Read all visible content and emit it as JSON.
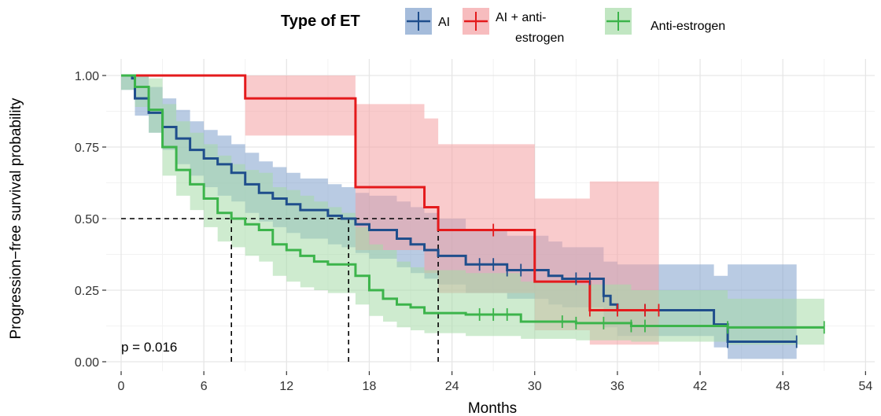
{
  "chart_data": {
    "type": "line",
    "subtype": "kaplan-meier",
    "xlabel": "Months",
    "ylabel": "Progression−free survival probability",
    "xlim": [
      0,
      54
    ],
    "ylim": [
      0,
      1
    ],
    "x_ticks": [
      "0",
      "6",
      "12",
      "18",
      "24",
      "30",
      "36",
      "42",
      "48",
      "54"
    ],
    "y_ticks": [
      "0.00",
      "0.25",
      "0.50",
      "0.75",
      "1.00"
    ],
    "grid": true,
    "legend": {
      "title": "Type of ET",
      "position": "top"
    },
    "annotation": "p = 0.016",
    "median_lines": [
      {
        "x": 8.0,
        "y": 0.5
      },
      {
        "x": 16.5,
        "y": 0.5
      },
      {
        "x": 23.0,
        "y": 0.5
      }
    ],
    "series": [
      {
        "name": "AI",
        "color": "#1f4e8c",
        "fill": "#7fa0cc",
        "steps": [
          [
            0,
            1.0
          ],
          [
            0.8,
            0.99
          ],
          [
            1.0,
            0.92
          ],
          [
            2.0,
            0.87
          ],
          [
            3.0,
            0.82
          ],
          [
            4.0,
            0.78
          ],
          [
            5.0,
            0.74
          ],
          [
            6.0,
            0.71
          ],
          [
            7.0,
            0.69
          ],
          [
            8.0,
            0.66
          ],
          [
            9.0,
            0.62
          ],
          [
            10.0,
            0.59
          ],
          [
            11.0,
            0.57
          ],
          [
            12.0,
            0.55
          ],
          [
            13.0,
            0.53
          ],
          [
            15.0,
            0.51
          ],
          [
            16.0,
            0.5
          ],
          [
            17.0,
            0.48
          ],
          [
            18.0,
            0.46
          ],
          [
            20.0,
            0.43
          ],
          [
            21.0,
            0.41
          ],
          [
            22.0,
            0.39
          ],
          [
            23.0,
            0.37
          ],
          [
            25.0,
            0.34
          ],
          [
            28.0,
            0.32
          ],
          [
            31.0,
            0.3
          ],
          [
            32.0,
            0.29
          ],
          [
            35.0,
            0.23
          ],
          [
            35.5,
            0.2
          ],
          [
            36.0,
            0.18
          ],
          [
            43.0,
            0.13
          ],
          [
            44.0,
            0.07
          ],
          [
            49.0,
            0.07
          ]
        ],
        "ci_upper": [
          [
            0,
            1.0
          ],
          [
            1.0,
            1.0
          ],
          [
            2.0,
            0.96
          ],
          [
            3.0,
            0.92
          ],
          [
            4.0,
            0.88
          ],
          [
            5.0,
            0.84
          ],
          [
            6.0,
            0.81
          ],
          [
            7.0,
            0.79
          ],
          [
            8.0,
            0.76
          ],
          [
            9.0,
            0.73
          ],
          [
            10.0,
            0.7
          ],
          [
            11.0,
            0.68
          ],
          [
            12.0,
            0.66
          ],
          [
            13.0,
            0.64
          ],
          [
            15.0,
            0.62
          ],
          [
            16.0,
            0.61
          ],
          [
            17.0,
            0.59
          ],
          [
            18.0,
            0.58
          ],
          [
            20.0,
            0.56
          ],
          [
            21.0,
            0.54
          ],
          [
            22.0,
            0.52
          ],
          [
            23.0,
            0.5
          ],
          [
            25.0,
            0.46
          ],
          [
            28.0,
            0.44
          ],
          [
            31.0,
            0.42
          ],
          [
            32.0,
            0.4
          ],
          [
            35.0,
            0.35
          ],
          [
            36.0,
            0.34
          ],
          [
            43.0,
            0.3
          ],
          [
            44.0,
            0.34
          ],
          [
            49.0,
            0.34
          ]
        ],
        "ci_lower": [
          [
            0,
            0.95
          ],
          [
            1.0,
            0.86
          ],
          [
            2.0,
            0.8
          ],
          [
            3.0,
            0.74
          ],
          [
            4.0,
            0.69
          ],
          [
            5.0,
            0.65
          ],
          [
            6.0,
            0.61
          ],
          [
            7.0,
            0.58
          ],
          [
            8.0,
            0.56
          ],
          [
            9.0,
            0.52
          ],
          [
            10.0,
            0.49
          ],
          [
            11.0,
            0.47
          ],
          [
            12.0,
            0.45
          ],
          [
            13.0,
            0.43
          ],
          [
            15.0,
            0.41
          ],
          [
            16.0,
            0.4
          ],
          [
            17.0,
            0.38
          ],
          [
            18.0,
            0.36
          ],
          [
            20.0,
            0.33
          ],
          [
            21.0,
            0.31
          ],
          [
            22.0,
            0.29
          ],
          [
            23.0,
            0.27
          ],
          [
            25.0,
            0.24
          ],
          [
            28.0,
            0.22
          ],
          [
            31.0,
            0.2
          ],
          [
            32.0,
            0.19
          ],
          [
            35.0,
            0.12
          ],
          [
            36.0,
            0.09
          ],
          [
            43.0,
            0.05
          ],
          [
            44.0,
            0.01
          ],
          [
            49.0,
            0.01
          ]
        ],
        "censor_times": [
          26,
          27,
          28,
          29,
          33,
          34,
          35,
          38,
          44,
          49
        ]
      },
      {
        "name": "AI + anti-estrogen",
        "color": "#e41a1c",
        "fill": "#f4a0a3",
        "steps": [
          [
            0,
            1.0
          ],
          [
            9.0,
            0.92
          ],
          [
            17.0,
            0.61
          ],
          [
            22.0,
            0.54
          ],
          [
            23.0,
            0.46
          ],
          [
            30.0,
            0.28
          ],
          [
            34.0,
            0.18
          ],
          [
            39.0,
            0.18
          ]
        ],
        "ci_upper": [
          [
            0,
            1.0
          ],
          [
            17.0,
            0.9
          ],
          [
            22.0,
            0.85
          ],
          [
            23.0,
            0.76
          ],
          [
            30.0,
            0.57
          ],
          [
            34.0,
            0.63
          ],
          [
            39.0,
            0.63
          ]
        ],
        "ci_lower": [
          [
            0,
            1.0
          ],
          [
            9.0,
            0.79
          ],
          [
            17.0,
            0.39
          ],
          [
            22.0,
            0.31
          ],
          [
            23.0,
            0.24
          ],
          [
            30.0,
            0.11
          ],
          [
            34.0,
            0.06
          ],
          [
            39.0,
            0.06
          ]
        ],
        "censor_times": [
          27,
          34,
          36,
          38,
          39
        ]
      },
      {
        "name": "Anti-estrogen",
        "color": "#3cb44b",
        "fill": "#a6dba8",
        "steps": [
          [
            0,
            1.0
          ],
          [
            1.0,
            0.96
          ],
          [
            2.0,
            0.88
          ],
          [
            3.0,
            0.75
          ],
          [
            4.0,
            0.67
          ],
          [
            5.0,
            0.62
          ],
          [
            6.0,
            0.57
          ],
          [
            7.0,
            0.52
          ],
          [
            8.0,
            0.5
          ],
          [
            9.0,
            0.48
          ],
          [
            10.0,
            0.46
          ],
          [
            11.0,
            0.41
          ],
          [
            12.0,
            0.39
          ],
          [
            13.0,
            0.37
          ],
          [
            14.0,
            0.35
          ],
          [
            15.0,
            0.34
          ],
          [
            17.0,
            0.3
          ],
          [
            18.0,
            0.25
          ],
          [
            19.0,
            0.22
          ],
          [
            20.0,
            0.2
          ],
          [
            21.0,
            0.19
          ],
          [
            22.0,
            0.17
          ],
          [
            25.0,
            0.165
          ],
          [
            29.0,
            0.14
          ],
          [
            33.0,
            0.135
          ],
          [
            37.0,
            0.125
          ],
          [
            44.0,
            0.12
          ],
          [
            51.0,
            0.12
          ]
        ],
        "ci_upper": [
          [
            0,
            1.0
          ],
          [
            2.0,
            0.99
          ],
          [
            3.0,
            0.9
          ],
          [
            4.0,
            0.84
          ],
          [
            5.0,
            0.8
          ],
          [
            6.0,
            0.76
          ],
          [
            7.0,
            0.72
          ],
          [
            8.0,
            0.69
          ],
          [
            9.0,
            0.67
          ],
          [
            10.0,
            0.66
          ],
          [
            11.0,
            0.61
          ],
          [
            12.0,
            0.6
          ],
          [
            13.0,
            0.58
          ],
          [
            14.0,
            0.56
          ],
          [
            15.0,
            0.54
          ],
          [
            16.0,
            0.52
          ],
          [
            17.0,
            0.47
          ],
          [
            18.0,
            0.41
          ],
          [
            19.0,
            0.39
          ],
          [
            20.0,
            0.35
          ],
          [
            21.0,
            0.33
          ],
          [
            22.0,
            0.32
          ],
          [
            25.0,
            0.31
          ],
          [
            29.0,
            0.28
          ],
          [
            33.0,
            0.27
          ],
          [
            37.0,
            0.25
          ],
          [
            44.0,
            0.22
          ],
          [
            51.0,
            0.22
          ]
        ],
        "ci_lower": [
          [
            0,
            0.95
          ],
          [
            1.0,
            0.89
          ],
          [
            2.0,
            0.8
          ],
          [
            3.0,
            0.65
          ],
          [
            4.0,
            0.58
          ],
          [
            5.0,
            0.53
          ],
          [
            6.0,
            0.47
          ],
          [
            7.0,
            0.42
          ],
          [
            8.0,
            0.4
          ],
          [
            9.0,
            0.37
          ],
          [
            10.0,
            0.35
          ],
          [
            11.0,
            0.3
          ],
          [
            12.0,
            0.28
          ],
          [
            13.0,
            0.26
          ],
          [
            14.0,
            0.25
          ],
          [
            15.0,
            0.24
          ],
          [
            17.0,
            0.2
          ],
          [
            18.0,
            0.16
          ],
          [
            19.0,
            0.14
          ],
          [
            20.0,
            0.12
          ],
          [
            21.0,
            0.11
          ],
          [
            22.0,
            0.1
          ],
          [
            25.0,
            0.09
          ],
          [
            29.0,
            0.08
          ],
          [
            33.0,
            0.075
          ],
          [
            37.0,
            0.07
          ],
          [
            44.0,
            0.06
          ],
          [
            51.0,
            0.06
          ]
        ],
        "censor_times": [
          26,
          27,
          28,
          32,
          33,
          35,
          37,
          38,
          44,
          51
        ]
      }
    ]
  }
}
